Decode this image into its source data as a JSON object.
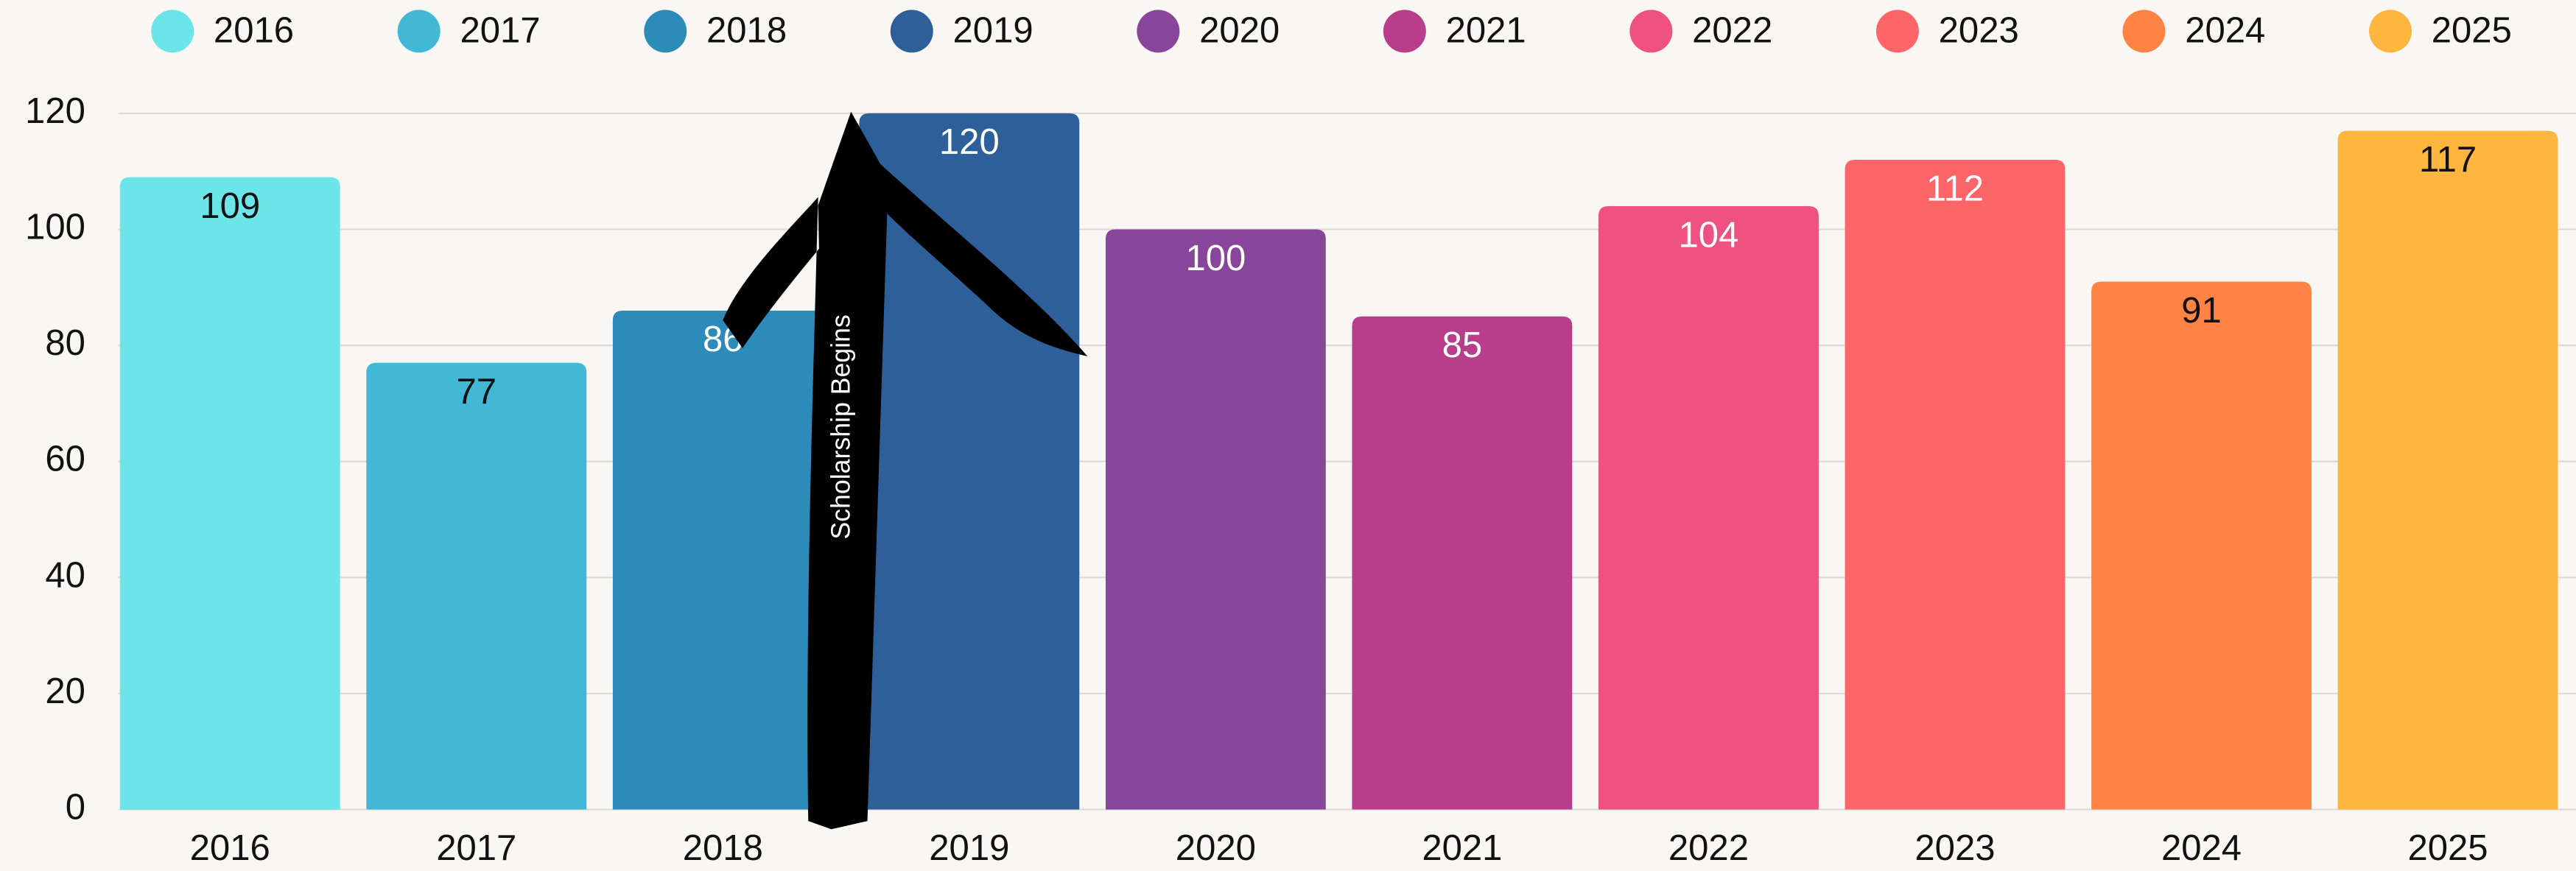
{
  "chart_data": {
    "type": "bar",
    "categories": [
      "2016",
      "2017",
      "2018",
      "2019",
      "2020",
      "2021",
      "2022",
      "2023",
      "2024",
      "2025"
    ],
    "values": [
      109,
      77,
      86,
      120,
      100,
      85,
      104,
      112,
      91,
      117
    ],
    "colors": [
      "#6ce5e8",
      "#41b8d5",
      "#2d8bba",
      "#2f5f98",
      "#88469a",
      "#b83d8b",
      "#ef5181",
      "#fe6569",
      "#ff8444",
      "#ffb63e"
    ],
    "ylim": [
      0,
      120
    ],
    "yticks": [
      0,
      20,
      40,
      60,
      80,
      100,
      120
    ],
    "grid": true,
    "legend": "top",
    "annotation": "Scholarship Begins"
  }
}
